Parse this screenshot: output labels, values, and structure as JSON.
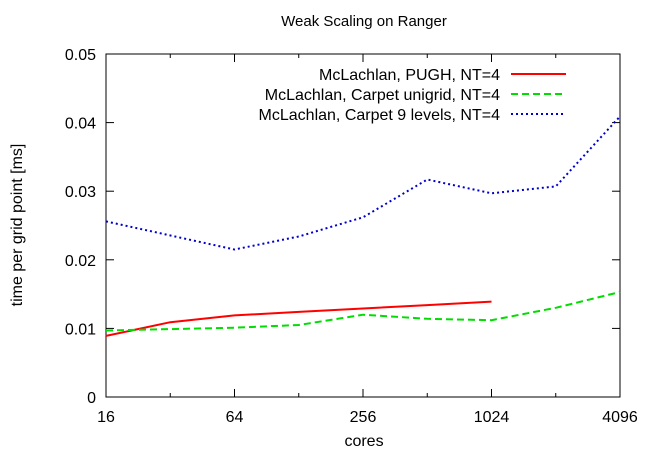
{
  "chart_data": {
    "type": "line",
    "title": "Weak Scaling on Ranger",
    "xlabel": "cores",
    "ylabel": "time per grid point [ms]",
    "x_scale": "log2",
    "xlim": [
      16,
      4096
    ],
    "ylim": [
      0,
      0.05
    ],
    "x_ticks": [
      16,
      64,
      256,
      1024,
      4096
    ],
    "y_ticks": [
      0,
      0.01,
      0.02,
      0.03,
      0.04,
      0.05
    ],
    "grid": false,
    "legend_position": "top-right",
    "series": [
      {
        "name": "McLachlan, PUGH, NT=4",
        "color": "#ff0000",
        "dash": "solid",
        "x": [
          16,
          32,
          64,
          128,
          256,
          512,
          1024
        ],
        "y": [
          0.0089,
          0.0109,
          0.0119,
          0.0124,
          0.0129,
          0.0134,
          0.0139
        ]
      },
      {
        "name": "McLachlan, Carpet unigrid, NT=4",
        "color": "#00dd00",
        "dash": "dashed",
        "x": [
          16,
          32,
          64,
          128,
          256,
          512,
          1024,
          2048,
          4096
        ],
        "y": [
          0.0097,
          0.0099,
          0.0101,
          0.0105,
          0.012,
          0.0114,
          0.0112,
          0.013,
          0.0153
        ]
      },
      {
        "name": "McLachlan, Carpet 9 levels, NT=4",
        "color": "#0000cc",
        "dash": "dotted",
        "x": [
          16,
          64,
          128,
          256,
          512,
          1024,
          2048,
          4096
        ],
        "y": [
          0.0256,
          0.0215,
          0.0234,
          0.0262,
          0.0317,
          0.0297,
          0.0307,
          0.0409
        ]
      }
    ]
  }
}
